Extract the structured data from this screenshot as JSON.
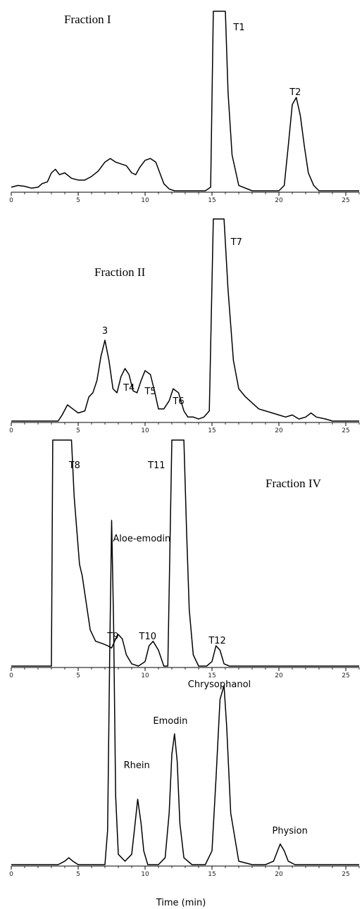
{
  "chart_data": [
    {
      "type": "line",
      "title": "Fraction I",
      "xlabel": "",
      "xlim": [
        0,
        26
      ],
      "xticks": [
        "0",
        "5",
        "10",
        "15",
        "20",
        "25"
      ],
      "series": [
        {
          "x": [
            0,
            0.5,
            1,
            1.5,
            2,
            2.3,
            2.7,
            3,
            3.3,
            3.6,
            4,
            4.5,
            5,
            5.5,
            6,
            6.5,
            7,
            7.4,
            7.8,
            8.2,
            8.6,
            9,
            9.3,
            9.6,
            10,
            10.4,
            10.8,
            11.1,
            11.4,
            11.8,
            12.2,
            13,
            14,
            14.5,
            14.9,
            15.1,
            16.0,
            16.2,
            16.5,
            17,
            18,
            19,
            20,
            20.4,
            20.7,
            21,
            21.3,
            21.6,
            21.9,
            22.2,
            22.6,
            23,
            24,
            25,
            26
          ],
          "y": [
            2,
            3,
            2.5,
            1.5,
            2,
            4,
            5,
            10,
            12,
            9,
            10,
            7,
            6,
            6,
            8,
            11,
            16,
            18,
            16,
            15,
            14,
            10,
            9,
            13,
            17,
            18,
            16,
            10,
            4,
            1,
            0,
            0,
            0,
            0,
            2,
            100,
            100,
            55,
            20,
            3,
            0,
            0,
            0,
            3,
            25,
            48,
            52,
            42,
            25,
            10,
            3,
            0,
            0,
            0,
            0
          ]
        }
      ],
      "labels": [
        {
          "text": "T1",
          "x": 16.6
        },
        {
          "text": "T2",
          "x": 20.8
        }
      ]
    },
    {
      "type": "line",
      "title": "Fraction II",
      "xlabel": "",
      "xlim": [
        0,
        26
      ],
      "xticks": [
        "0",
        "5",
        "10",
        "15",
        "20",
        "25"
      ],
      "series": [
        {
          "x": [
            0,
            3.5,
            3.8,
            4.2,
            4.6,
            5,
            5.5,
            5.8,
            6.1,
            6.4,
            6.7,
            7.0,
            7.3,
            7.6,
            7.9,
            8.2,
            8.5,
            8.8,
            9.1,
            9.4,
            9.7,
            10.0,
            10.4,
            10.7,
            11.0,
            11.4,
            11.8,
            12.1,
            12.5,
            12.9,
            13.2,
            13.6,
            14.0,
            14.4,
            14.8,
            15.1,
            15.9,
            16.2,
            16.6,
            17.0,
            17.5,
            18,
            18.5,
            19,
            19.5,
            20,
            20.5,
            21,
            21.5,
            22,
            22.4,
            22.8,
            23.5,
            24,
            26
          ],
          "y": [
            0,
            0,
            3,
            8,
            6,
            4,
            5,
            12,
            14,
            20,
            32,
            40,
            30,
            16,
            14,
            22,
            26,
            23,
            15,
            14,
            20,
            25,
            23,
            15,
            6,
            6,
            10,
            16,
            14,
            5,
            2,
            2,
            1,
            2,
            5,
            100,
            100,
            65,
            30,
            16,
            12,
            9,
            6,
            5,
            4,
            3,
            2,
            3,
            1,
            2,
            4,
            2,
            1,
            0,
            0
          ]
        }
      ],
      "labels": [
        {
          "text": "3",
          "x": 7.0
        },
        {
          "text": "T4",
          "x": 8.8
        },
        {
          "text": "T5",
          "x": 10.4
        },
        {
          "text": "T6",
          "x": 12.5
        },
        {
          "text": "T7",
          "x": 16.4
        }
      ]
    },
    {
      "type": "line",
      "title": "Fraction IV",
      "xlabel": "",
      "xlim": [
        0,
        26
      ],
      "xticks": [
        "0",
        "5",
        "10",
        "15",
        "20",
        "25"
      ],
      "series": [
        {
          "x": [
            0,
            2.9,
            3.0,
            3.1,
            4.5,
            4.7,
            4.9,
            5.1,
            5.3,
            5.6,
            5.9,
            6.3,
            6.8,
            7.2,
            7.5,
            7.8,
            8.0,
            8.3,
            8.6,
            9.0,
            9.5,
            10.0,
            10.3,
            10.6,
            11.0,
            11.4,
            11.7,
            12.0,
            12.9,
            13.1,
            13.3,
            13.6,
            14.0,
            14.6,
            15.0,
            15.3,
            15.6,
            15.9,
            16.3,
            17,
            18,
            19,
            20,
            21,
            22,
            23,
            24,
            25,
            26
          ],
          "y": [
            0,
            0,
            0,
            100,
            100,
            75,
            60,
            45,
            40,
            28,
            16,
            11,
            10,
            9,
            8,
            12,
            14,
            12,
            5,
            1,
            0,
            2,
            9,
            11,
            7,
            0,
            0,
            100,
            100,
            60,
            25,
            5,
            0,
            0,
            2,
            9,
            7,
            1,
            0,
            0,
            0,
            0,
            0,
            0,
            0,
            0,
            0,
            0,
            0
          ]
        }
      ],
      "labels": [
        {
          "text": "T8",
          "x": 4.3
        },
        {
          "text": "T9",
          "x": 7.6
        },
        {
          "text": "T10",
          "x": 10.2
        },
        {
          "text": "T11",
          "x": 11.5
        },
        {
          "text": "T12",
          "x": 15.4
        },
        {
          "text": "Fraction IV",
          "x": 19.0
        }
      ]
    },
    {
      "type": "line",
      "title": "",
      "xlabel": "Time (min)",
      "xlim": [
        0,
        26
      ],
      "xticks": [
        "0",
        "5",
        "10",
        "15",
        "20",
        "25"
      ],
      "series": [
        {
          "x": [
            0,
            3.5,
            4.0,
            4.3,
            4.6,
            5,
            7.0,
            7.2,
            7.35,
            7.5,
            7.65,
            7.8,
            8.0,
            8.5,
            9.0,
            9.2,
            9.45,
            9.7,
            9.9,
            10.2,
            11,
            11.5,
            11.8,
            12.0,
            12.2,
            12.4,
            12.6,
            12.9,
            13.5,
            14.5,
            15.0,
            15.3,
            15.6,
            15.9,
            16.1,
            16.4,
            17,
            18,
            19,
            19.6,
            19.9,
            20.1,
            20.4,
            20.7,
            21.2,
            22,
            24,
            26
          ],
          "y": [
            0,
            0,
            1,
            2,
            1,
            0,
            0,
            10,
            60,
            100,
            70,
            20,
            3,
            1,
            3,
            10,
            19,
            12,
            4,
            0,
            0,
            2,
            15,
            32,
            38,
            30,
            12,
            2,
            0,
            0,
            4,
            25,
            48,
            52,
            40,
            15,
            1,
            0,
            0,
            1,
            4,
            6,
            4,
            1,
            0,
            0,
            0,
            0
          ]
        }
      ],
      "labels": [
        {
          "text": "Aloe-emodin",
          "x": 7.6
        },
        {
          "text": "Rhein",
          "x": 8.4
        },
        {
          "text": "Emodin",
          "x": 10.6
        },
        {
          "text": "Chrysophanol",
          "x": 13.2
        },
        {
          "text": "Physion",
          "x": 19.5
        }
      ]
    }
  ]
}
